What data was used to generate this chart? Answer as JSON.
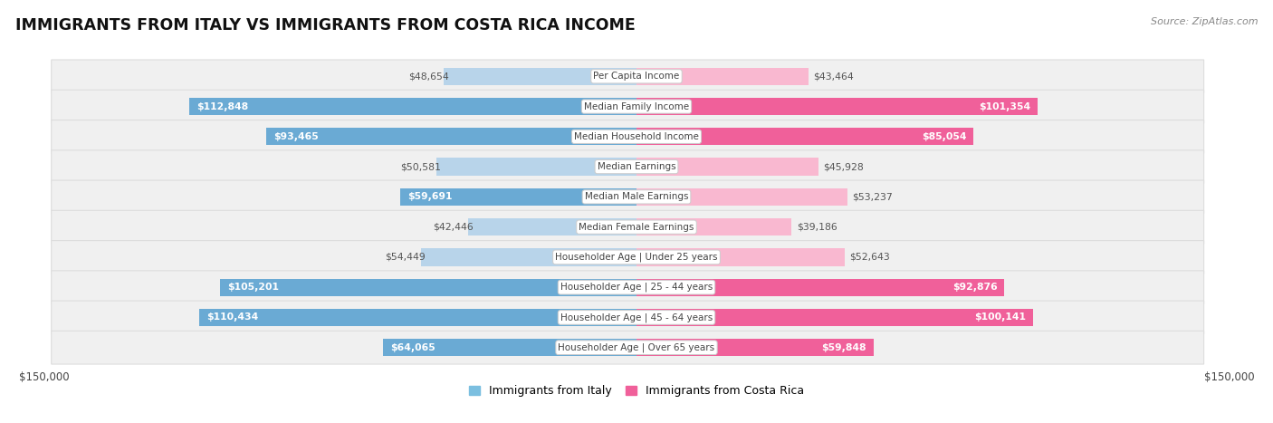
{
  "title": "IMMIGRANTS FROM ITALY VS IMMIGRANTS FROM COSTA RICA INCOME",
  "source": "Source: ZipAtlas.com",
  "categories": [
    "Per Capita Income",
    "Median Family Income",
    "Median Household Income",
    "Median Earnings",
    "Median Male Earnings",
    "Median Female Earnings",
    "Householder Age | Under 25 years",
    "Householder Age | 25 - 44 years",
    "Householder Age | 45 - 64 years",
    "Householder Age | Over 65 years"
  ],
  "italy_values": [
    48654,
    112848,
    93465,
    50581,
    59691,
    42446,
    54449,
    105201,
    110434,
    64065
  ],
  "costa_rica_values": [
    43464,
    101354,
    85054,
    45928,
    53237,
    39186,
    52643,
    92876,
    100141,
    59848
  ],
  "italy_labels": [
    "$48,654",
    "$112,848",
    "$93,465",
    "$50,581",
    "$59,691",
    "$42,446",
    "$54,449",
    "$105,201",
    "$110,434",
    "$64,065"
  ],
  "costa_rica_labels": [
    "$43,464",
    "$101,354",
    "$85,054",
    "$45,928",
    "$53,237",
    "$39,186",
    "$52,643",
    "$92,876",
    "$100,141",
    "$59,848"
  ],
  "italy_color_light": "#b8d4ea",
  "italy_color_dark": "#6aaad4",
  "costa_rica_color_light": "#f9b8d0",
  "costa_rica_color_dark": "#f0609a",
  "italy_legend_color": "#7bbfe0",
  "costa_rica_legend_color": "#f0609a",
  "max_value": 150000,
  "background_color": "#ffffff",
  "row_bg_color": "#f0f0f0",
  "row_border_color": "#dddddd",
  "label_color_outside": "#555555",
  "label_color_inside": "#ffffff",
  "inside_threshold": 55000,
  "xlabel_left": "$150,000",
  "xlabel_right": "$150,000",
  "legend_italy": "Immigrants from Italy",
  "legend_costa_rica": "Immigrants from Costa Rica"
}
